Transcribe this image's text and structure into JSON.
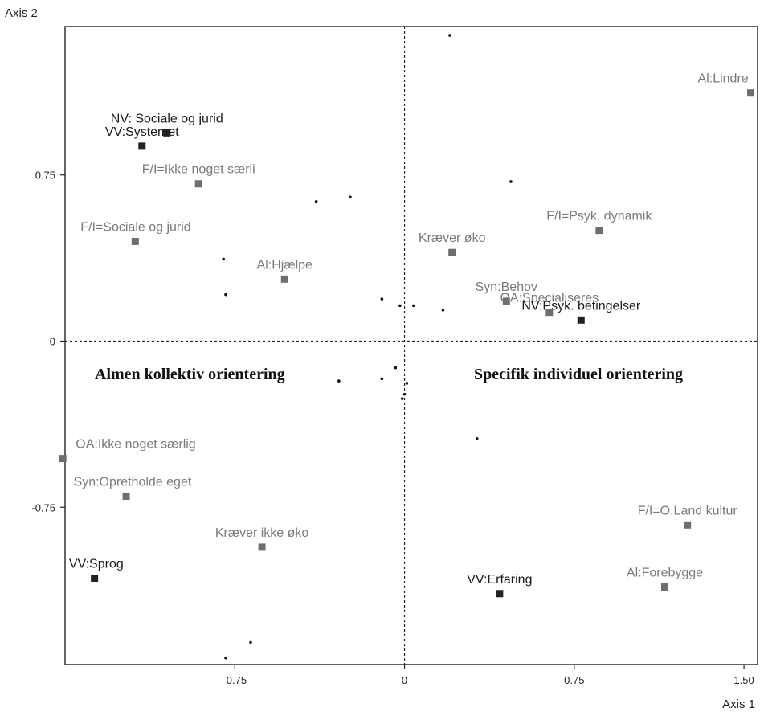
{
  "chart_data": {
    "type": "scatter",
    "xlabel": "Axis 1",
    "ylabel": "Axis 2",
    "xlim": [
      -1.5,
      1.56
    ],
    "ylim": [
      -1.46,
      1.42
    ],
    "x_ticks": [
      {
        "value": -0.75,
        "label": "-0.75"
      },
      {
        "value": 0,
        "label": "0"
      },
      {
        "value": 0.75,
        "label": "0.75"
      },
      {
        "value": 1.5,
        "label": "1.50"
      }
    ],
    "y_ticks": [
      {
        "value": 0.75,
        "label": "0.75"
      },
      {
        "value": 0,
        "label": "0"
      },
      {
        "value": -0.75,
        "label": "-0.75"
      }
    ],
    "reference_lines": {
      "x": 0,
      "y": 0,
      "style": "dashed"
    },
    "region_labels": [
      {
        "text": "Almen kollektiv orientering",
        "side": "left"
      },
      {
        "text": "Specifik individuel orientering",
        "side": "right"
      }
    ],
    "categories": [
      {
        "label": "Al:Lindre",
        "x": 1.53,
        "y": 1.12,
        "tone": "grey"
      },
      {
        "label": "NV: Sociale og jurid",
        "x": -1.05,
        "y": 0.94,
        "tone": "dark"
      },
      {
        "label": "VV:Systemet",
        "x": -1.16,
        "y": 0.88,
        "tone": "dark"
      },
      {
        "label": "F/I=Ikke noget særli",
        "x": -0.91,
        "y": 0.71,
        "tone": "grey"
      },
      {
        "label": "F/I=Psyk. dynamik",
        "x": 0.86,
        "y": 0.5,
        "tone": "grey"
      },
      {
        "label": "F/I=Sociale og jurid",
        "x": -1.19,
        "y": 0.45,
        "tone": "grey"
      },
      {
        "label": "Kræver øko",
        "x": 0.21,
        "y": 0.4,
        "tone": "grey"
      },
      {
        "label": "Al:Hjælpe",
        "x": -0.53,
        "y": 0.28,
        "tone": "grey"
      },
      {
        "label": "Syn:Behov",
        "x": 0.45,
        "y": 0.18,
        "tone": "grey"
      },
      {
        "label": "OA:Specialiseres",
        "x": 0.64,
        "y": 0.13,
        "tone": "grey"
      },
      {
        "label": "NV:Psyk. betingelser",
        "x": 0.78,
        "y": 0.095,
        "tone": "dark"
      },
      {
        "label": "OA:Ikke noget særlig",
        "x": -1.51,
        "y": -0.53,
        "tone": "grey"
      },
      {
        "label": "Syn:Opretholde eget",
        "x": -1.23,
        "y": -0.7,
        "tone": "grey"
      },
      {
        "label": "Kræver ikke øko",
        "x": -0.63,
        "y": -0.93,
        "tone": "grey"
      },
      {
        "label": "VV:Sprog",
        "x": -1.37,
        "y": -1.07,
        "tone": "dark"
      },
      {
        "label": "F/I=O.Land kultur",
        "x": 1.25,
        "y": -0.83,
        "tone": "grey"
      },
      {
        "label": "Al:Forebygge",
        "x": 1.15,
        "y": -1.11,
        "tone": "grey"
      },
      {
        "label": "VV:Erfaring",
        "x": 0.42,
        "y": -1.14,
        "tone": "dark"
      }
    ],
    "individuals": [
      [
        0.2,
        1.38
      ],
      [
        0.47,
        0.72
      ],
      [
        -0.24,
        0.65
      ],
      [
        -0.39,
        0.63
      ],
      [
        -0.8,
        0.37
      ],
      [
        -0.79,
        0.21
      ],
      [
        -0.1,
        0.19
      ],
      [
        -0.02,
        0.16
      ],
      [
        0.04,
        0.16
      ],
      [
        0.17,
        0.14
      ],
      [
        -0.04,
        -0.12
      ],
      [
        -0.1,
        -0.17
      ],
      [
        -0.29,
        -0.18
      ],
      [
        0.01,
        -0.19
      ],
      [
        0.0,
        -0.24
      ],
      [
        -0.01,
        -0.26
      ],
      [
        0.32,
        -0.44
      ],
      [
        -0.68,
        -1.36
      ],
      [
        -0.79,
        -1.43
      ]
    ],
    "colors": {
      "dark_marker": "#222222",
      "grey_marker": "#6e6e6e",
      "individual": "#111111"
    }
  }
}
